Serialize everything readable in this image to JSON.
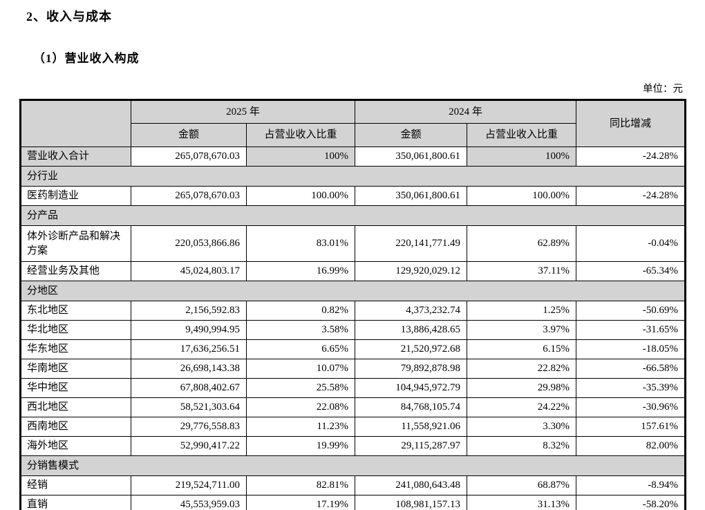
{
  "page": {
    "title": "2、收入与成本",
    "subtitle": "（1）营业收入构成",
    "unit_label": "单位：元"
  },
  "table": {
    "header": {
      "year_2025": "2025 年",
      "year_2024": "2024 年",
      "amount": "金额",
      "ratio": "占营业收入比重",
      "yoy": "同比增减"
    },
    "rows": [
      {
        "type": "data",
        "total": true,
        "label": "营业收入合计",
        "y2025_amount": "265,078,670.03",
        "y2025_ratio": "100%",
        "y2024_amount": "350,061,800.61",
        "y2024_ratio": "100%",
        "yoy": "-24.28%"
      },
      {
        "type": "section",
        "label": "分行业"
      },
      {
        "type": "data",
        "label": "医药制造业",
        "y2025_amount": "265,078,670.03",
        "y2025_ratio": "100.00%",
        "y2024_amount": "350,061,800.61",
        "y2024_ratio": "100.00%",
        "yoy": "-24.28%"
      },
      {
        "type": "section",
        "label": "分产品"
      },
      {
        "type": "data",
        "twoline": true,
        "label": "体外诊断产品和解决方案",
        "y2025_amount": "220,053,866.86",
        "y2025_ratio": "83.01%",
        "y2024_amount": "220,141,771.49",
        "y2024_ratio": "62.89%",
        "yoy": "-0.04%"
      },
      {
        "type": "data",
        "label": "经营业务及其他",
        "y2025_amount": "45,024,803.17",
        "y2025_ratio": "16.99%",
        "y2024_amount": "129,920,029.12",
        "y2024_ratio": "37.11%",
        "yoy": "-65.34%"
      },
      {
        "type": "section",
        "label": "分地区"
      },
      {
        "type": "data",
        "label": "东北地区",
        "y2025_amount": "2,156,592.83",
        "y2025_ratio": "0.82%",
        "y2024_amount": "4,373,232.74",
        "y2024_ratio": "1.25%",
        "yoy": "-50.69%"
      },
      {
        "type": "data",
        "label": "华北地区",
        "y2025_amount": "9,490,994.95",
        "y2025_ratio": "3.58%",
        "y2024_amount": "13,886,428.65",
        "y2024_ratio": "3.97%",
        "yoy": "-31.65%"
      },
      {
        "type": "data",
        "label": "华东地区",
        "y2025_amount": "17,636,256.51",
        "y2025_ratio": "6.65%",
        "y2024_amount": "21,520,972.68",
        "y2024_ratio": "6.15%",
        "yoy": "-18.05%"
      },
      {
        "type": "data",
        "label": "华南地区",
        "y2025_amount": "26,698,143.38",
        "y2025_ratio": "10.07%",
        "y2024_amount": "79,892,878.98",
        "y2024_ratio": "22.82%",
        "yoy": "-66.58%"
      },
      {
        "type": "data",
        "label": "华中地区",
        "y2025_amount": "67,808,402.67",
        "y2025_ratio": "25.58%",
        "y2024_amount": "104,945,972.79",
        "y2024_ratio": "29.98%",
        "yoy": "-35.39%"
      },
      {
        "type": "data",
        "label": "西北地区",
        "y2025_amount": "58,521,303.64",
        "y2025_ratio": "22.08%",
        "y2024_amount": "84,768,105.74",
        "y2024_ratio": "24.22%",
        "yoy": "-30.96%"
      },
      {
        "type": "data",
        "label": "西南地区",
        "y2025_amount": "29,776,558.83",
        "y2025_ratio": "11.23%",
        "y2024_amount": "11,558,921.06",
        "y2024_ratio": "3.30%",
        "yoy": "157.61%"
      },
      {
        "type": "data",
        "label": "海外地区",
        "y2025_amount": "52,990,417.22",
        "y2025_ratio": "19.99%",
        "y2024_amount": "29,115,287.97",
        "y2024_ratio": "8.32%",
        "yoy": "82.00%"
      },
      {
        "type": "section",
        "label": "分销售模式"
      },
      {
        "type": "data",
        "label": "经销",
        "y2025_amount": "219,524,711.00",
        "y2025_ratio": "82.81%",
        "y2024_amount": "241,080,643.48",
        "y2024_ratio": "68.87%",
        "yoy": "-8.94%"
      },
      {
        "type": "data",
        "label": "直销",
        "y2025_amount": "45,553,959.03",
        "y2025_ratio": "17.19%",
        "y2024_amount": "108,981,157.13",
        "y2024_ratio": "31.13%",
        "yoy": "-58.20%"
      }
    ]
  }
}
